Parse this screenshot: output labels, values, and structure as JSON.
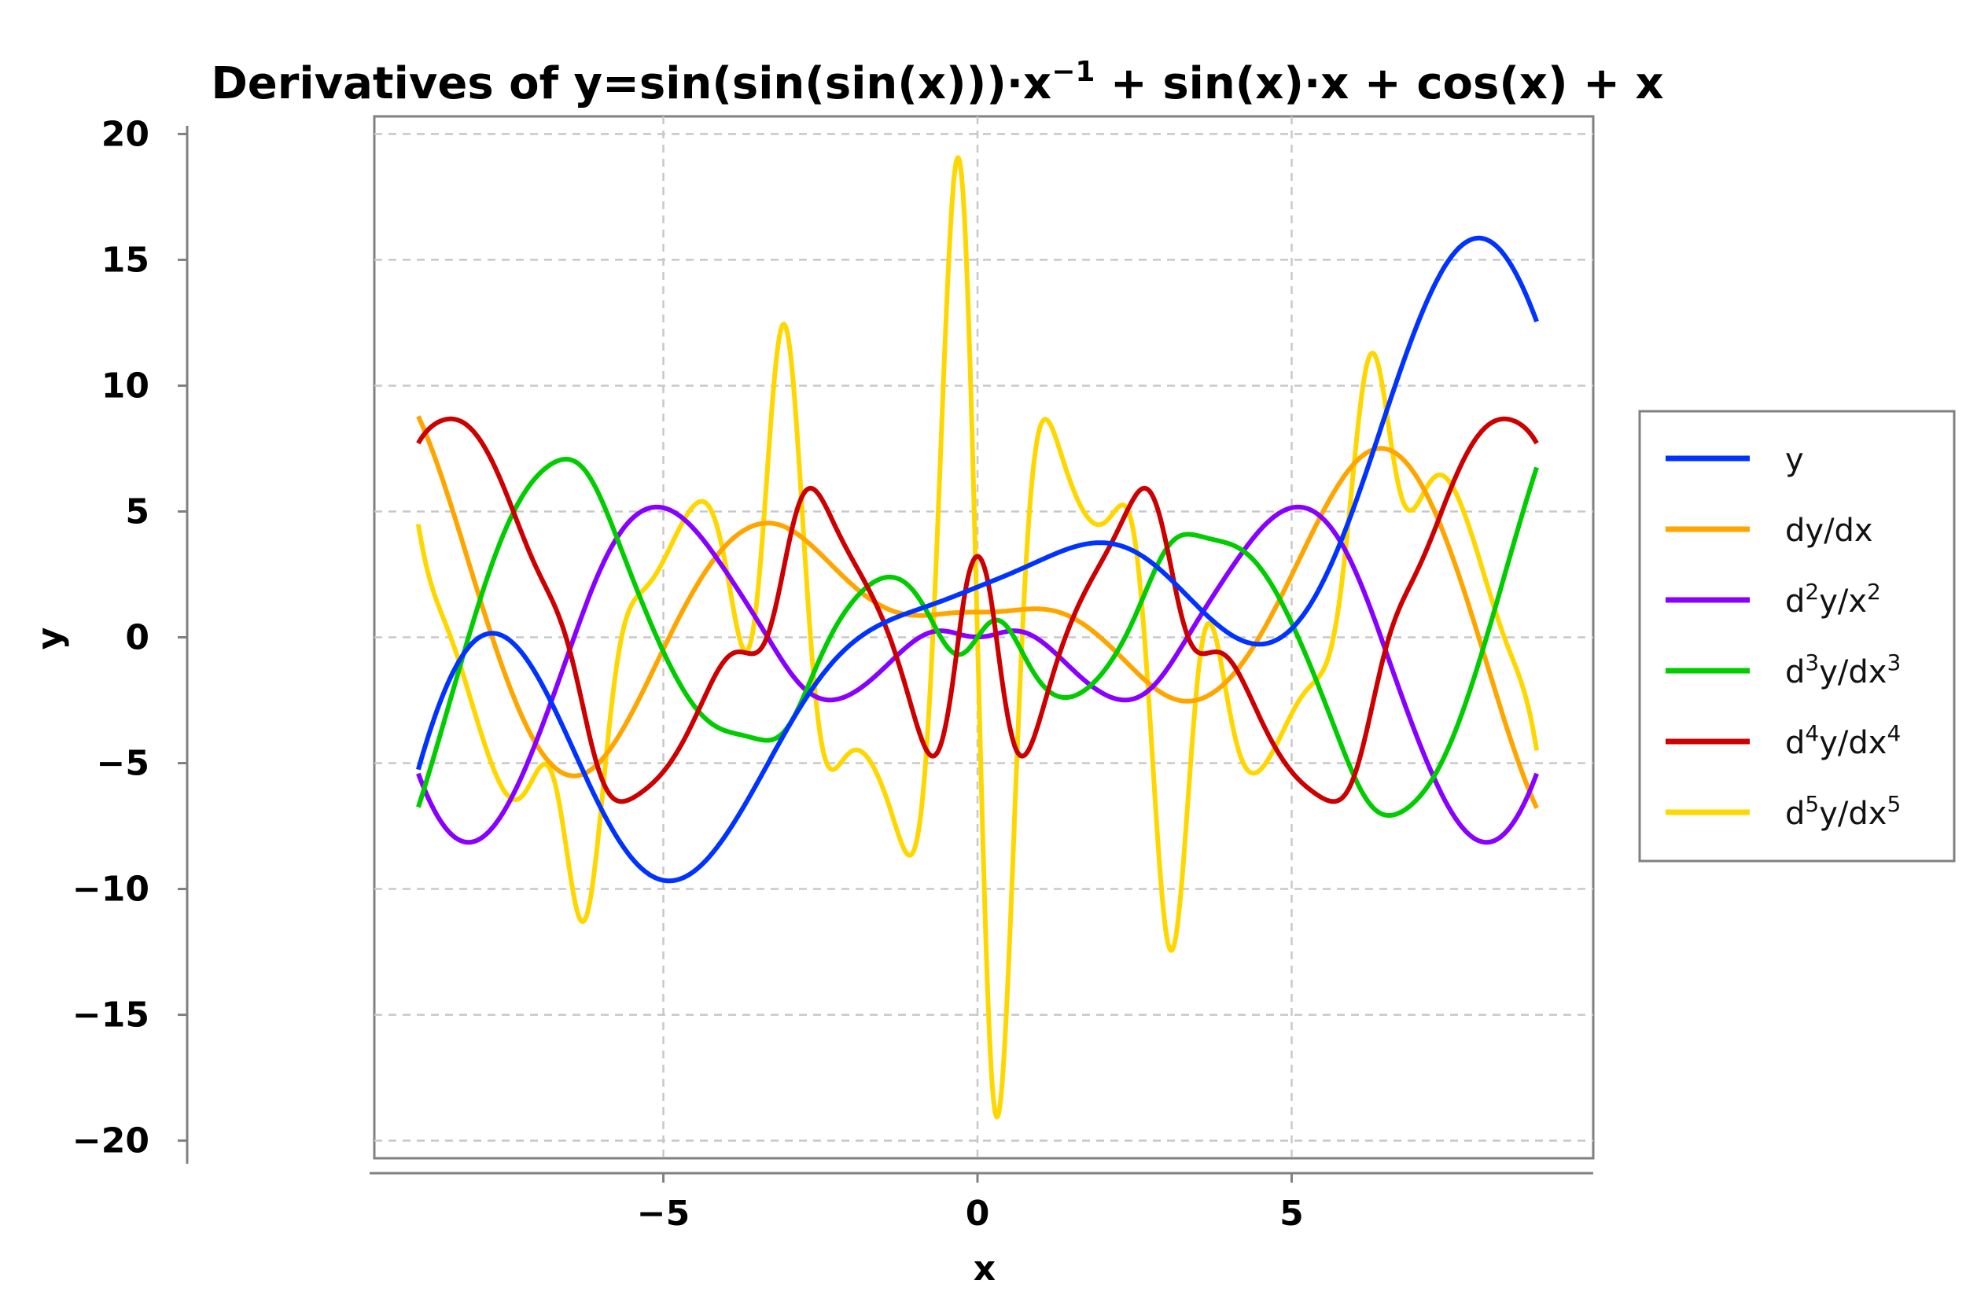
{
  "chart_data": {
    "type": "line",
    "title": {
      "main": "Derivatives of y=sin(sin(sin(x)))·x",
      "sup": "−1",
      "rest": " + sin(x)·x + cos(x) + x"
    },
    "xlabel": "x",
    "ylabel": "y",
    "xlim": [
      -9.6,
      9.8
    ],
    "ylim": [
      -20.7,
      20.7
    ],
    "xticks": [
      -5,
      0,
      5
    ],
    "xtick_labels": [
      "−5",
      "0",
      "5"
    ],
    "yticks": [
      20,
      15,
      10,
      5,
      0,
      -5,
      -10,
      -15,
      -20
    ],
    "ytick_labels": [
      "20",
      "15",
      "10",
      "5",
      "0",
      "−5",
      "−10",
      "−15",
      "−20"
    ],
    "grid": true,
    "legend_position": "right",
    "x_range": [
      -8.9,
      8.9
    ],
    "series": [
      {
        "name": "y",
        "legend": {
          "base": "y",
          "parts": []
        },
        "color": "#0033ff",
        "order": 0
      },
      {
        "name": "dy/dx",
        "legend": {
          "base": "dy/dx",
          "parts": []
        },
        "color": "#ffa500",
        "order": 1
      },
      {
        "name": "d2y/x2",
        "legend": {
          "base": "",
          "parts": [
            [
              "d",
              ""
            ],
            [
              "2",
              "sup"
            ],
            [
              "y/x",
              ""
            ],
            [
              "2",
              "sup"
            ]
          ]
        },
        "color": "#8800ff",
        "order": 2
      },
      {
        "name": "d3y/dx3",
        "legend": {
          "base": "",
          "parts": [
            [
              "d",
              ""
            ],
            [
              "3",
              "sup"
            ],
            [
              "y/dx",
              ""
            ],
            [
              "3",
              "sup"
            ]
          ]
        },
        "color": "#00cc00",
        "order": 3
      },
      {
        "name": "d4y/dx4",
        "legend": {
          "base": "",
          "parts": [
            [
              "d",
              ""
            ],
            [
              "4",
              "sup"
            ],
            [
              "y/dx",
              ""
            ],
            [
              "4",
              "sup"
            ]
          ]
        },
        "color": "#cc0000",
        "order": 4
      },
      {
        "name": "d5y/dx5",
        "legend": {
          "base": "",
          "parts": [
            [
              "d",
              ""
            ],
            [
              "5",
              "sup"
            ],
            [
              "y/dx",
              ""
            ],
            [
              "5",
              "sup"
            ]
          ]
        },
        "color": "#ffd700",
        "order": 5
      }
    ],
    "draw_order": [
      5,
      1,
      2,
      3,
      4,
      0
    ]
  }
}
